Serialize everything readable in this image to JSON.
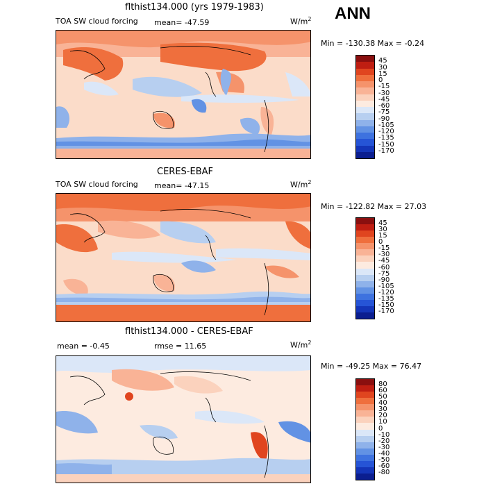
{
  "season": "ANN",
  "colors": {
    "sw_scale": [
      "#8a0f0f",
      "#bf1e12",
      "#e0451f",
      "#ef6f3d",
      "#f5936b",
      "#f9b396",
      "#fbd2bd",
      "#fdebe0",
      "#dbe7f8",
      "#b7cff0",
      "#8fb2ea",
      "#6292e4",
      "#3e72df",
      "#2654d6",
      "#1435b8",
      "#0b1e8f"
    ],
    "diff_scale": [
      "#8a0f0f",
      "#bf1e12",
      "#e0451f",
      "#ef6f3d",
      "#f5936b",
      "#f9b396",
      "#fbd2bd",
      "#fdebe0",
      "#dbe7f8",
      "#b7cff0",
      "#8fb2ea",
      "#6292e4",
      "#3e72df",
      "#2654d6",
      "#1435b8",
      "#0b1e8f"
    ],
    "ocean_neutral": "#fbdcc9"
  },
  "panels": [
    {
      "title": "flthist134.000 (yrs 1979-1983)",
      "left_label": "TOA SW cloud forcing",
      "mean_label": "mean=  -47.59",
      "units": "W/m",
      "units_sup": "2",
      "minmax": "Min = -130.38 Max =   -0.24",
      "colorbar_labels": [
        "45",
        "30",
        "15",
        "0",
        "-15",
        "-30",
        "-45",
        "-60",
        "-75",
        "-90",
        "-105",
        "-120",
        "-135",
        "-150",
        "-170"
      ]
    },
    {
      "title": "CERES-EBAF",
      "left_label": "TOA SW cloud forcing",
      "mean_label": "mean=  -47.15",
      "units": "W/m",
      "units_sup": "2",
      "minmax": "Min = -122.82 Max =  27.03",
      "colorbar_labels": [
        "45",
        "30",
        "15",
        "0",
        "-15",
        "-30",
        "-45",
        "-60",
        "-75",
        "-90",
        "-105",
        "-120",
        "-135",
        "-150",
        "-170"
      ]
    },
    {
      "title": "flthist134.000 - CERES-EBAF",
      "left_label": "mean =  -0.45",
      "mean_label": "rmse =  11.65",
      "units": "W/m",
      "units_sup": "2",
      "minmax": "Min = -49.25 Max =  76.47",
      "colorbar_labels": [
        "80",
        "60",
        "50",
        "40",
        "30",
        "20",
        "10",
        "0",
        "-10",
        "-20",
        "-30",
        "-40",
        "-50",
        "-60",
        "-80"
      ]
    }
  ],
  "chart_data": [
    {
      "type": "heatmap",
      "title": "flthist134.000 (yrs 1979-1983)",
      "field": "TOA SW cloud forcing",
      "units": "W/m2",
      "mean": -47.59,
      "min": -130.38,
      "max": -0.24,
      "contour_levels": [
        45,
        30,
        15,
        0,
        -15,
        -30,
        -45,
        -60,
        -75,
        -90,
        -105,
        -120,
        -135,
        -150,
        -170
      ]
    },
    {
      "type": "heatmap",
      "title": "CERES-EBAF",
      "field": "TOA SW cloud forcing",
      "units": "W/m2",
      "mean": -47.15,
      "min": -122.82,
      "max": 27.03,
      "contour_levels": [
        45,
        30,
        15,
        0,
        -15,
        -30,
        -45,
        -60,
        -75,
        -90,
        -105,
        -120,
        -135,
        -150,
        -170
      ]
    },
    {
      "type": "heatmap",
      "title": "flthist134.000 - CERES-EBAF",
      "units": "W/m2",
      "mean": -0.45,
      "rmse": 11.65,
      "min": -49.25,
      "max": 76.47,
      "contour_levels": [
        80,
        60,
        50,
        40,
        30,
        20,
        10,
        0,
        -10,
        -20,
        -30,
        -40,
        -50,
        -60,
        -80
      ]
    }
  ]
}
